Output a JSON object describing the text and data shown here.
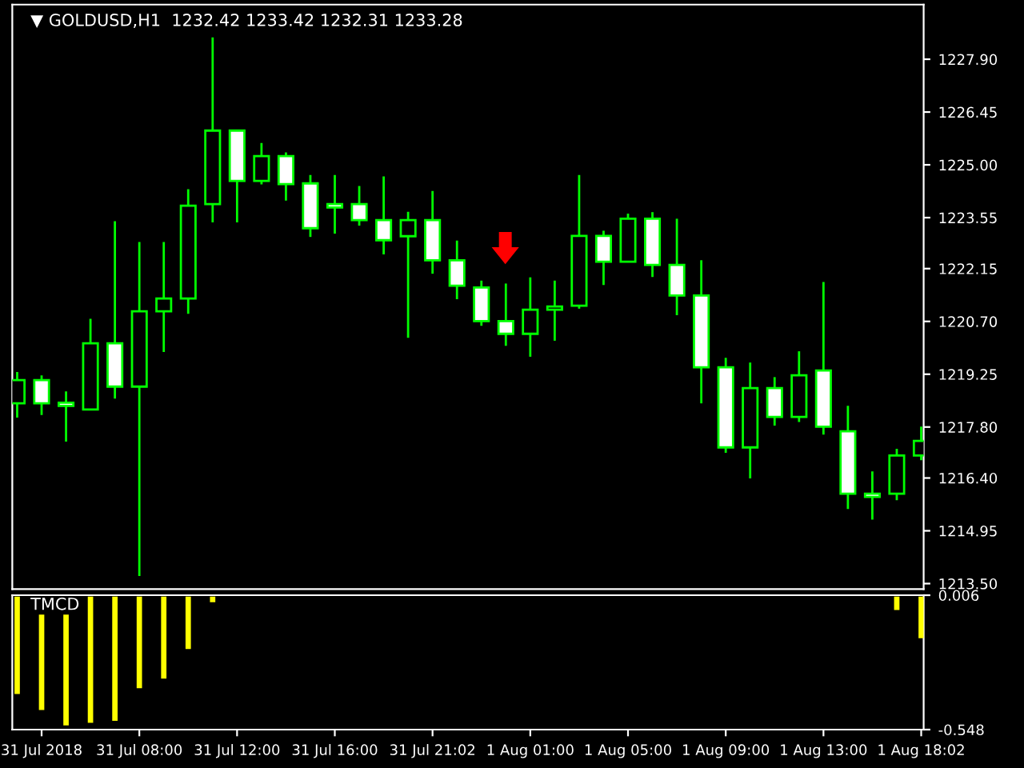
{
  "chart_data": [
    {
      "type": "candlestick",
      "title": "▼ GOLDUSD,H1  1232.42 1233.42 1232.31 1233.28",
      "categories": [
        null,
        null,
        null,
        null,
        null,
        null,
        null,
        null,
        null,
        null,
        null,
        null,
        null,
        null,
        null,
        null,
        null,
        null,
        null,
        null,
        null,
        null,
        null,
        null,
        null,
        null,
        null,
        null,
        null,
        null,
        null,
        null,
        null,
        null,
        null,
        null,
        null,
        null
      ],
      "series": [
        {
          "color": "#00ff00",
          "ohlc": [
            [
              1218.45,
              1219.31,
              1218.06,
              1219.09
            ],
            [
              1219.09,
              1219.22,
              1218.13,
              1218.45
            ],
            [
              1218.47,
              1218.78,
              1217.4,
              1218.38
            ],
            [
              1218.28,
              1220.77,
              1218.28,
              1220.1
            ],
            [
              1220.1,
              1223.45,
              1218.58,
              1218.91
            ],
            [
              1218.91,
              1222.88,
              1213.71,
              1220.98
            ],
            [
              1220.98,
              1222.88,
              1219.86,
              1221.33
            ],
            [
              1221.33,
              1224.33,
              1220.91,
              1223.88
            ],
            [
              1223.92,
              1228.5,
              1223.42,
              1225.94
            ],
            [
              1225.94,
              1225.94,
              1223.42,
              1224.56
            ],
            [
              1224.56,
              1225.6,
              1224.46,
              1225.24
            ],
            [
              1225.24,
              1225.34,
              1224.02,
              1224.47
            ],
            [
              1224.49,
              1224.72,
              1223.02,
              1223.26
            ],
            [
              1223.92,
              1224.72,
              1223.11,
              1223.83
            ],
            [
              1223.92,
              1224.42,
              1223.33,
              1223.48
            ],
            [
              1223.48,
              1224.68,
              1222.54,
              1222.93
            ],
            [
              1223.04,
              1223.71,
              1220.25,
              1223.48
            ],
            [
              1223.48,
              1224.28,
              1222.01,
              1222.38
            ],
            [
              1222.38,
              1222.92,
              1221.31,
              1221.68
            ],
            [
              1221.63,
              1221.82,
              1220.58,
              1220.71
            ],
            [
              1220.71,
              1221.74,
              1220.03,
              1220.36
            ],
            [
              1220.36,
              1221.91,
              1219.73,
              1221.02
            ],
            [
              1221.02,
              1221.82,
              1220.17,
              1221.11
            ],
            [
              1221.13,
              1224.72,
              1221.05,
              1223.05
            ],
            [
              1223.05,
              1223.19,
              1221.7,
              1222.34
            ],
            [
              1222.34,
              1223.66,
              1222.34,
              1223.52
            ],
            [
              1223.52,
              1223.7,
              1221.92,
              1222.25
            ],
            [
              1222.25,
              1223.52,
              1220.87,
              1221.41
            ],
            [
              1221.41,
              1222.38,
              1218.45,
              1219.44
            ],
            [
              1219.44,
              1219.7,
              1217.09,
              1217.24
            ],
            [
              1217.24,
              1219.57,
              1216.39,
              1218.87
            ],
            [
              1218.87,
              1219.17,
              1217.84,
              1218.08
            ],
            [
              1218.08,
              1219.88,
              1217.94,
              1219.22
            ],
            [
              1219.35,
              1221.78,
              1217.59,
              1217.81
            ],
            [
              1217.68,
              1218.38,
              1215.55,
              1215.97
            ],
            [
              1215.97,
              1216.58,
              1215.26,
              1215.88
            ],
            [
              1215.97,
              1217.2,
              1215.79,
              1217.02
            ],
            [
              1217.02,
              1217.81,
              1216.89,
              1217.42
            ]
          ]
        }
      ],
      "ylim": [
        1213.35,
        1229.4
      ],
      "yticks": [
        {
          "value": 1213.5,
          "label": "1213.50"
        },
        1214.95,
        {
          "value": 1216.4,
          "label": "1216.40"
        },
        {
          "value": 1217.8,
          "label": "1217.80"
        },
        1219.25,
        {
          "value": 1220.7,
          "label": "1220.70"
        },
        1222.15,
        1223.55,
        {
          "value": 1225.0,
          "label": "1225.00"
        },
        1226.45,
        {
          "value": 1227.9,
          "label": "1227.90"
        }
      ],
      "tick_labels": "y"
    },
    {
      "type": "bar",
      "title": "TMCD",
      "categories": [
        null,
        "31 Jul 2018",
        null,
        null,
        null,
        "31 Jul 08:00",
        null,
        null,
        null,
        "31 Jul 12:00",
        null,
        null,
        null,
        "31 Jul 16:00",
        null,
        null,
        null,
        "31 Jul 21:02",
        null,
        null,
        null,
        "1 Aug 01:00",
        null,
        null,
        null,
        "1 Aug 05:00",
        null,
        null,
        null,
        "1 Aug 09:00",
        null,
        null,
        null,
        "1 Aug 13:00",
        null,
        null,
        null,
        "1 Aug 18:02"
      ],
      "series": [
        {
          "color": "#ffff00",
          "values": [
            -0.401,
            -0.467,
            -0.531,
            -0.52,
            -0.512,
            -0.377,
            -0.338,
            -0.216,
            -0.023,
            null,
            null,
            null,
            null,
            null,
            null,
            null,
            null,
            null,
            null,
            null,
            null,
            null,
            null,
            null,
            null,
            null,
            null,
            null,
            null,
            null,
            null,
            null,
            null,
            null,
            null,
            null,
            -0.055,
            -0.171
          ]
        }
      ],
      "ylim": [
        -0.548,
        0.006
      ],
      "yticks": [
        -0.548,
        0.006
      ]
    }
  ]
}
